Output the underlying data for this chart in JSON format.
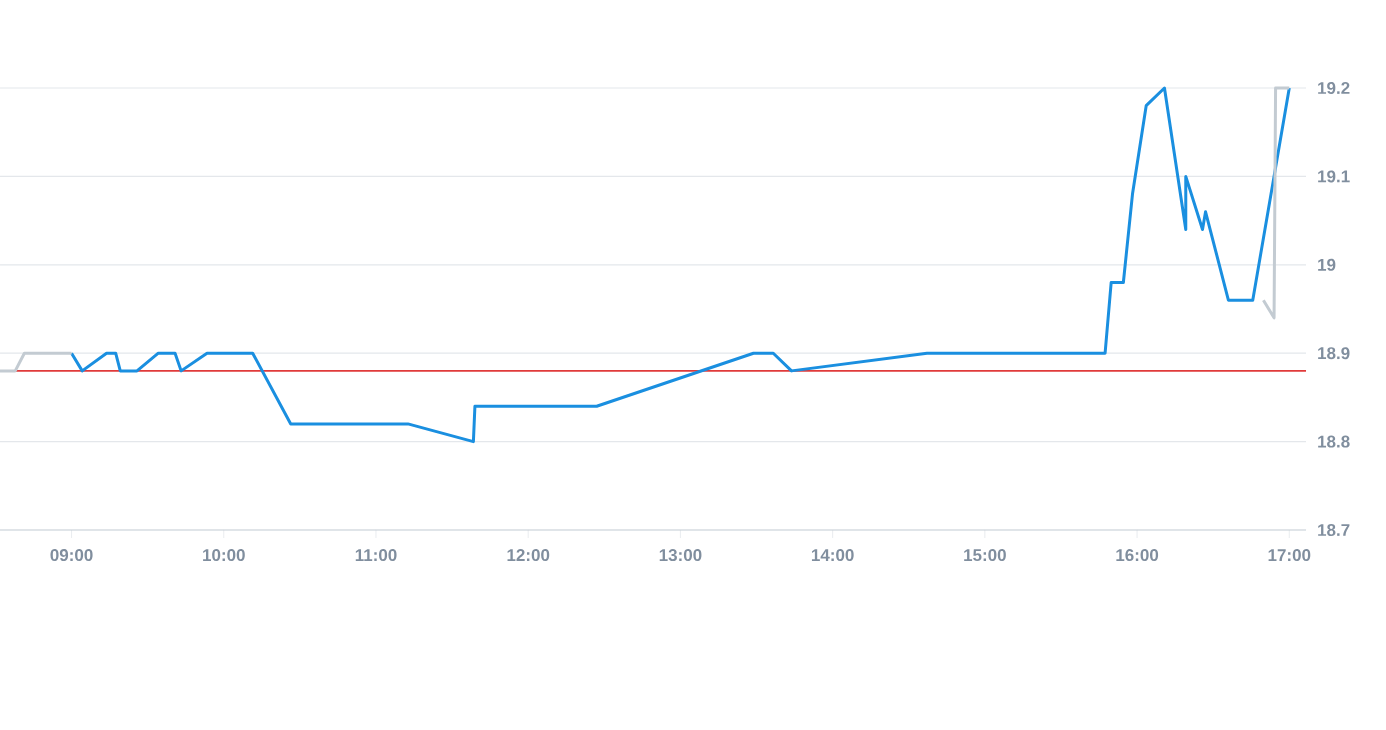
{
  "chart_data": {
    "type": "line",
    "xlim": [
      8.53,
      17.11
    ],
    "ylim": [
      18.7,
      19.2
    ],
    "xticks": [
      {
        "value": 9,
        "label": "09:00"
      },
      {
        "value": 10,
        "label": "10:00"
      },
      {
        "value": 11,
        "label": "11:00"
      },
      {
        "value": 12,
        "label": "12:00"
      },
      {
        "value": 13,
        "label": "13:00"
      },
      {
        "value": 14,
        "label": "14:00"
      },
      {
        "value": 15,
        "label": "15:00"
      },
      {
        "value": 16,
        "label": "16:00"
      },
      {
        "value": 17,
        "label": "17:00"
      }
    ],
    "yticks": [
      18.7,
      18.8,
      18.9,
      19,
      19.1,
      19.2
    ],
    "grid": "y",
    "ref_lines": [
      {
        "axis": "y",
        "value": 18.88,
        "color": "#e03a3a"
      }
    ],
    "series": [
      {
        "color": "#1a8fe0",
        "x": [
          9.0,
          9.07,
          9.23,
          9.29,
          9.32,
          9.43,
          9.57,
          9.68,
          9.72,
          9.89,
          10.19,
          10.44,
          11.21,
          11.64,
          11.65,
          12.45,
          13.48,
          13.61,
          13.73,
          14.62,
          15.79,
          15.83,
          15.91,
          15.97,
          16.06,
          16.18,
          16.32,
          16.32,
          16.43,
          16.45,
          16.6,
          16.76,
          17.0
        ],
        "values": [
          18.9,
          18.88,
          18.9,
          18.9,
          18.88,
          18.88,
          18.9,
          18.9,
          18.88,
          18.9,
          18.9,
          18.82,
          18.82,
          18.8,
          18.84,
          18.84,
          18.9,
          18.9,
          18.88,
          18.9,
          18.9,
          18.98,
          18.98,
          19.08,
          19.18,
          19.2,
          19.04,
          19.1,
          19.04,
          19.06,
          18.96,
          18.96,
          19.2
        ]
      },
      {
        "color": "#c3cbd2",
        "x": [
          8.53,
          8.63,
          8.69,
          9.0
        ],
        "values": [
          18.88,
          18.88,
          18.9,
          18.9
        ]
      },
      {
        "color": "#c3cbd2",
        "x": [
          16.83,
          16.9,
          16.91,
          17.0
        ],
        "values": [
          18.96,
          18.94,
          19.2,
          19.2
        ]
      }
    ]
  }
}
